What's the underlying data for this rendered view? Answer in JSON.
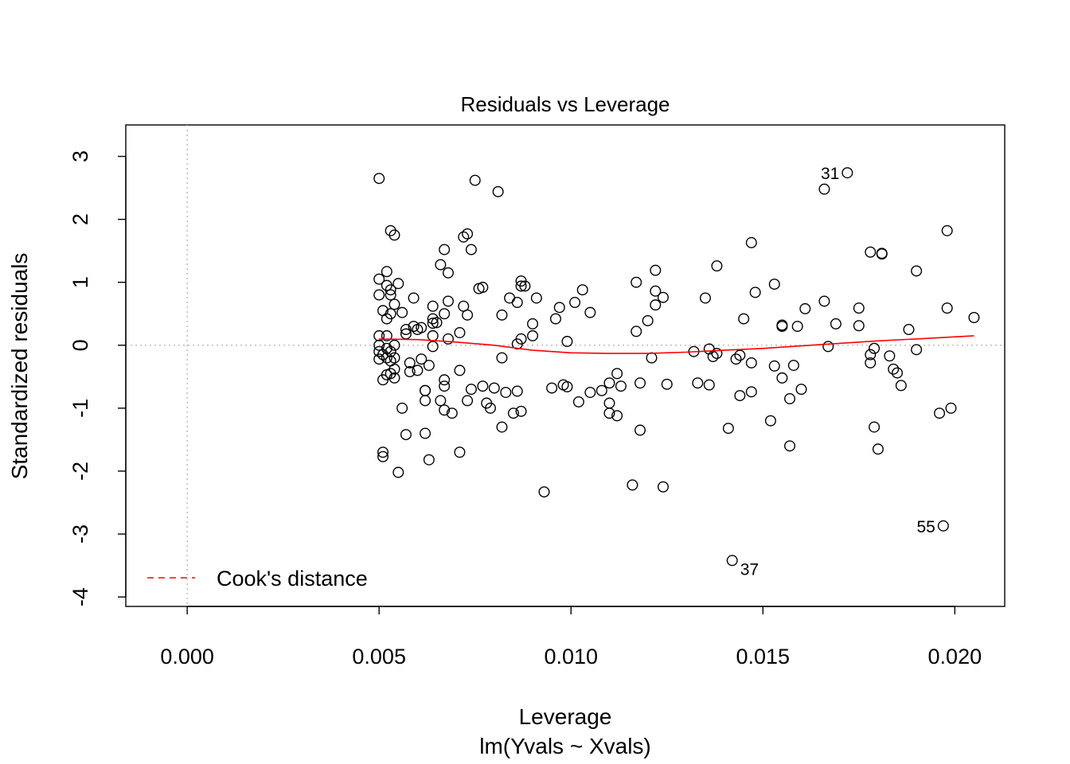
{
  "chart_data": {
    "type": "scatter",
    "title": "Residuals vs Leverage",
    "xlabel": "Leverage",
    "subtitle": "lm(Yvals ~ Xvals)",
    "ylabel": "Standardized residuals",
    "xlim": [
      -0.0016,
      0.0213
    ],
    "ylim": [
      -4.15,
      3.5
    ],
    "x_ticks": [
      0.0,
      0.005,
      0.01,
      0.015,
      0.02
    ],
    "x_tick_labels": [
      "0.000",
      "0.005",
      "0.010",
      "0.015",
      "0.020"
    ],
    "y_ticks": [
      -4,
      -3,
      -2,
      -1,
      0,
      1,
      2,
      3
    ],
    "y_tick_labels": [
      "-4",
      "-3",
      "-2",
      "-1",
      "0",
      "1",
      "2",
      "3"
    ],
    "legend": {
      "position": "bottom-left",
      "label": "Cook's distance",
      "color": "#ff0000",
      "line_style": "dashed"
    },
    "colors": {
      "points": "#000000",
      "smooth": "#ff0000",
      "reference": "#bebebe"
    },
    "reference_lines": {
      "vertical_x": 0,
      "horizontal_y": 0,
      "style": "dotted"
    },
    "smooth_line": {
      "x": [
        0.005,
        0.006,
        0.007,
        0.008,
        0.009,
        0.01,
        0.011,
        0.012,
        0.013,
        0.014,
        0.015,
        0.016,
        0.017,
        0.018,
        0.019,
        0.0205
      ],
      "y": [
        0.1,
        0.09,
        0.05,
        0.0,
        -0.08,
        -0.12,
        -0.13,
        -0.13,
        -0.11,
        -0.08,
        -0.05,
        -0.01,
        0.03,
        0.07,
        0.1,
        0.15
      ]
    },
    "labeled_points": [
      {
        "label": "31",
        "x": 0.0172,
        "y": 2.74
      },
      {
        "label": "37",
        "x": 0.0142,
        "y": -3.42
      },
      {
        "label": "55",
        "x": 0.0197,
        "y": -2.87
      }
    ],
    "points": [
      [
        0.005,
        2.65
      ],
      [
        0.005,
        1.05
      ],
      [
        0.005,
        0.8
      ],
      [
        0.005,
        0.15
      ],
      [
        0.005,
        0.0
      ],
      [
        0.005,
        -0.1
      ],
      [
        0.005,
        -0.22
      ],
      [
        0.0051,
        0.55
      ],
      [
        0.0051,
        -0.15
      ],
      [
        0.0051,
        -0.55
      ],
      [
        0.0051,
        -1.7
      ],
      [
        0.0051,
        -1.77
      ],
      [
        0.0052,
        1.17
      ],
      [
        0.0052,
        0.95
      ],
      [
        0.0052,
        0.42
      ],
      [
        0.0052,
        0.15
      ],
      [
        0.0052,
        -0.05
      ],
      [
        0.0052,
        -0.2
      ],
      [
        0.0052,
        -0.47
      ],
      [
        0.0053,
        0.88
      ],
      [
        0.0053,
        0.5
      ],
      [
        0.0053,
        -0.1
      ],
      [
        0.0053,
        -0.25
      ],
      [
        0.0053,
        -0.45
      ],
      [
        0.0053,
        1.82
      ],
      [
        0.0054,
        1.75
      ],
      [
        0.0053,
        0.8
      ],
      [
        0.0054,
        0.65
      ],
      [
        0.0054,
        -0.38
      ],
      [
        0.0054,
        -0.52
      ],
      [
        0.0054,
        -0.2
      ],
      [
        0.0054,
        0.0
      ],
      [
        0.0055,
        0.98
      ],
      [
        0.0055,
        -2.02
      ],
      [
        0.0056,
        0.52
      ],
      [
        0.0056,
        -1.0
      ],
      [
        0.0057,
        0.25
      ],
      [
        0.0057,
        0.18
      ],
      [
        0.0057,
        -1.42
      ],
      [
        0.0058,
        -0.28
      ],
      [
        0.0058,
        -0.42
      ],
      [
        0.0059,
        0.75
      ],
      [
        0.0059,
        0.3
      ],
      [
        0.006,
        0.25
      ],
      [
        0.006,
        -0.4
      ],
      [
        0.0061,
        0.28
      ],
      [
        0.0061,
        -0.22
      ],
      [
        0.0062,
        -0.88
      ],
      [
        0.0062,
        -1.4
      ],
      [
        0.0062,
        -0.72
      ],
      [
        0.0062,
        -0.72
      ],
      [
        0.0063,
        -1.82
      ],
      [
        0.0063,
        -0.32
      ],
      [
        0.0064,
        0.62
      ],
      [
        0.0064,
        0.42
      ],
      [
        0.0064,
        0.35
      ],
      [
        0.0064,
        0.15
      ],
      [
        0.0064,
        -0.02
      ],
      [
        0.0065,
        0.36
      ],
      [
        0.0066,
        1.28
      ],
      [
        0.0066,
        -0.88
      ],
      [
        0.0067,
        1.52
      ],
      [
        0.0067,
        0.5
      ],
      [
        0.0067,
        -0.55
      ],
      [
        0.0067,
        -0.65
      ],
      [
        0.0067,
        -1.03
      ],
      [
        0.0068,
        1.15
      ],
      [
        0.0068,
        0.7
      ],
      [
        0.0068,
        0.1
      ],
      [
        0.0069,
        -1.08
      ],
      [
        0.0071,
        0.2
      ],
      [
        0.0071,
        -0.4
      ],
      [
        0.0071,
        -1.7
      ],
      [
        0.0072,
        1.72
      ],
      [
        0.0072,
        0.62
      ],
      [
        0.0073,
        1.77
      ],
      [
        0.0073,
        0.48
      ],
      [
        0.0073,
        -0.88
      ],
      [
        0.0074,
        -0.7
      ],
      [
        0.0074,
        1.52
      ],
      [
        0.0075,
        2.62
      ],
      [
        0.0076,
        0.9
      ],
      [
        0.0077,
        0.92
      ],
      [
        0.0077,
        -0.65
      ],
      [
        0.0078,
        -0.92
      ],
      [
        0.0079,
        -1.0
      ],
      [
        0.008,
        -0.68
      ],
      [
        0.0081,
        2.44
      ],
      [
        0.0082,
        0.48
      ],
      [
        0.0082,
        -0.2
      ],
      [
        0.0082,
        -1.3
      ],
      [
        0.0083,
        -0.75
      ],
      [
        0.0084,
        0.75
      ],
      [
        0.0085,
        -1.08
      ],
      [
        0.0086,
        0.68
      ],
      [
        0.0086,
        0.02
      ],
      [
        0.0086,
        -0.73
      ],
      [
        0.0087,
        1.02
      ],
      [
        0.0087,
        0.94
      ],
      [
        0.0087,
        0.1
      ],
      [
        0.0087,
        -1.05
      ],
      [
        0.0088,
        0.94
      ],
      [
        0.009,
        0.34
      ],
      [
        0.009,
        0.15
      ],
      [
        0.0091,
        0.75
      ],
      [
        0.0093,
        -2.33
      ],
      [
        0.0095,
        -0.68
      ],
      [
        0.0096,
        0.42
      ],
      [
        0.0097,
        0.6
      ],
      [
        0.0098,
        -0.63
      ],
      [
        0.0099,
        -0.66
      ],
      [
        0.0099,
        0.06
      ],
      [
        0.0101,
        0.68
      ],
      [
        0.0102,
        -0.9
      ],
      [
        0.0103,
        0.88
      ],
      [
        0.0105,
        0.52
      ],
      [
        0.0105,
        -0.75
      ],
      [
        0.0108,
        -0.72
      ],
      [
        0.011,
        -0.6
      ],
      [
        0.011,
        -0.92
      ],
      [
        0.011,
        -1.08
      ],
      [
        0.0112,
        -0.45
      ],
      [
        0.0112,
        -1.12
      ],
      [
        0.0113,
        -0.65
      ],
      [
        0.0116,
        -2.22
      ],
      [
        0.0117,
        1.0
      ],
      [
        0.0117,
        0.22
      ],
      [
        0.0118,
        -0.6
      ],
      [
        0.0118,
        -1.35
      ],
      [
        0.012,
        0.39
      ],
      [
        0.0121,
        -0.2
      ],
      [
        0.0122,
        0.86
      ],
      [
        0.0122,
        1.19
      ],
      [
        0.0122,
        0.64
      ],
      [
        0.0124,
        0.76
      ],
      [
        0.0124,
        -2.25
      ],
      [
        0.0125,
        -0.62
      ],
      [
        0.0132,
        -0.1
      ],
      [
        0.0133,
        -0.6
      ],
      [
        0.0135,
        0.75
      ],
      [
        0.0136,
        -0.63
      ],
      [
        0.0136,
        -0.06
      ],
      [
        0.0137,
        -0.18
      ],
      [
        0.0138,
        -0.13
      ],
      [
        0.0138,
        1.26
      ],
      [
        0.0141,
        -1.32
      ],
      [
        0.0143,
        -0.22
      ],
      [
        0.0144,
        -0.16
      ],
      [
        0.0144,
        -0.8
      ],
      [
        0.0145,
        0.42
      ],
      [
        0.0147,
        -0.74
      ],
      [
        0.0147,
        1.63
      ],
      [
        0.0147,
        -0.28
      ],
      [
        0.0148,
        0.84
      ],
      [
        0.0152,
        -1.2
      ],
      [
        0.0153,
        0.97
      ],
      [
        0.0153,
        -0.33
      ],
      [
        0.0155,
        0.32
      ],
      [
        0.0155,
        -0.52
      ],
      [
        0.0155,
        0.3
      ],
      [
        0.0157,
        -1.6
      ],
      [
        0.0157,
        -0.85
      ],
      [
        0.0158,
        -0.32
      ],
      [
        0.0159,
        0.3
      ],
      [
        0.016,
        -0.7
      ],
      [
        0.0161,
        0.58
      ],
      [
        0.0166,
        0.7
      ],
      [
        0.0166,
        2.48
      ],
      [
        0.0167,
        -0.02
      ],
      [
        0.0169,
        0.34
      ],
      [
        0.0175,
        0.31
      ],
      [
        0.0175,
        0.59
      ],
      [
        0.0178,
        1.48
      ],
      [
        0.0178,
        -0.15
      ],
      [
        0.0178,
        -0.28
      ],
      [
        0.0179,
        -1.3
      ],
      [
        0.0179,
        -0.05
      ],
      [
        0.018,
        -1.65
      ],
      [
        0.0181,
        1.46
      ],
      [
        0.0181,
        1.45
      ],
      [
        0.0183,
        -0.17
      ],
      [
        0.0184,
        -0.38
      ],
      [
        0.0185,
        -0.44
      ],
      [
        0.0186,
        -0.64
      ],
      [
        0.0188,
        0.25
      ],
      [
        0.019,
        1.18
      ],
      [
        0.019,
        -0.07
      ],
      [
        0.0196,
        -1.08
      ],
      [
        0.0198,
        0.59
      ],
      [
        0.0198,
        1.82
      ],
      [
        0.0199,
        -1.0
      ],
      [
        0.0205,
        0.44
      ]
    ]
  }
}
